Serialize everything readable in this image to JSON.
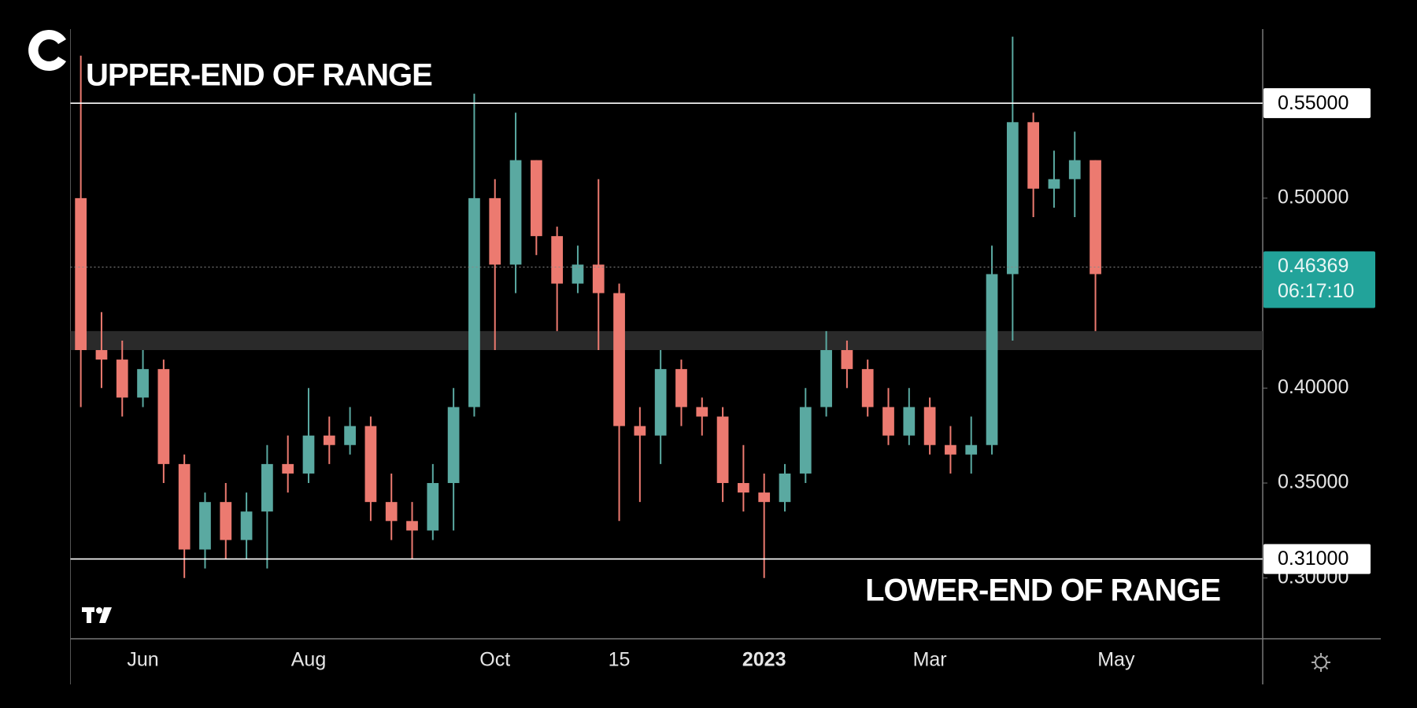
{
  "chart_data": {
    "type": "candlestick",
    "annotations": [
      "UPPER-END OF RANGE",
      "LOWER-END OF RANGE"
    ],
    "categories": [
      null,
      null,
      null,
      "Jun",
      null,
      null,
      null,
      null,
      null,
      null,
      null,
      "Aug",
      null,
      null,
      null,
      null,
      null,
      null,
      null,
      null,
      "Oct",
      null,
      null,
      null,
      null,
      null,
      "15",
      null,
      null,
      null,
      null,
      null,
      null,
      "2023",
      null,
      null,
      null,
      null,
      null,
      null,
      null,
      "Mar",
      null,
      null,
      null,
      null,
      null,
      null,
      null,
      null,
      "May"
    ],
    "open": [
      0.5,
      0.42,
      0.415,
      0.395,
      0.41,
      0.36,
      0.315,
      0.34,
      0.32,
      0.335,
      0.36,
      0.355,
      0.375,
      0.37,
      0.38,
      0.34,
      0.33,
      0.325,
      0.35,
      0.39,
      0.5,
      0.465,
      0.52,
      0.48,
      0.455,
      0.465,
      0.45,
      0.38,
      0.375,
      0.41,
      0.39,
      0.385,
      0.35,
      0.345,
      0.34,
      0.355,
      0.39,
      0.42,
      0.41,
      0.39,
      0.375,
      0.39,
      0.37,
      0.365,
      0.37,
      0.46,
      0.54,
      0.505,
      0.51,
      0.52,
      null
    ],
    "high": [
      0.575,
      0.44,
      0.425,
      0.42,
      0.415,
      0.365,
      0.345,
      0.35,
      0.345,
      0.37,
      0.375,
      0.4,
      0.385,
      0.39,
      0.385,
      0.355,
      0.34,
      0.36,
      0.4,
      0.555,
      0.51,
      0.545,
      0.52,
      0.485,
      0.475,
      0.51,
      0.455,
      0.39,
      0.42,
      0.415,
      0.395,
      0.39,
      0.37,
      0.355,
      0.36,
      0.4,
      0.43,
      0.425,
      0.415,
      0.4,
      0.4,
      0.395,
      0.38,
      0.385,
      0.475,
      0.585,
      0.545,
      0.525,
      0.535,
      0.52,
      null
    ],
    "low": [
      0.39,
      0.4,
      0.385,
      0.39,
      0.35,
      0.3,
      0.305,
      0.31,
      0.31,
      0.305,
      0.345,
      0.35,
      0.36,
      0.365,
      0.33,
      0.32,
      0.31,
      0.32,
      0.325,
      0.385,
      0.42,
      0.45,
      0.47,
      0.43,
      0.45,
      0.42,
      0.33,
      0.34,
      0.36,
      0.38,
      0.375,
      0.34,
      0.335,
      0.3,
      0.335,
      0.35,
      0.385,
      0.4,
      0.385,
      0.37,
      0.37,
      0.365,
      0.355,
      0.355,
      0.365,
      0.425,
      0.49,
      0.495,
      0.49,
      0.43,
      null
    ],
    "close": [
      0.42,
      0.415,
      0.395,
      0.41,
      0.36,
      0.315,
      0.34,
      0.32,
      0.335,
      0.36,
      0.355,
      0.375,
      0.37,
      0.38,
      0.34,
      0.33,
      0.325,
      0.35,
      0.39,
      0.5,
      0.465,
      0.52,
      0.48,
      0.455,
      0.465,
      0.45,
      0.38,
      0.375,
      0.41,
      0.39,
      0.385,
      0.35,
      0.345,
      0.34,
      0.355,
      0.39,
      0.42,
      0.41,
      0.39,
      0.375,
      0.39,
      0.37,
      0.365,
      0.37,
      0.46,
      0.54,
      0.505,
      0.51,
      0.52,
      0.46,
      null
    ],
    "up_color": "#5aa9a1",
    "down_color": "#ec7a70",
    "ylim": [
      0.268,
      0.589
    ],
    "yticks": [
      {
        "value": 0.3,
        "label": "0.30000"
      },
      {
        "value": 0.35,
        "label": "0.35000"
      },
      {
        "value": 0.4,
        "label": "0.40000"
      },
      {
        "value": 0.5,
        "label": "0.50000"
      }
    ],
    "levels": [
      {
        "value": 0.55,
        "label": "0.55000"
      },
      {
        "value": 0.31,
        "label": "0.31000"
      }
    ],
    "zone": {
      "low": 0.42,
      "high": 0.43
    },
    "current_price": 0.46369,
    "countdown": "06:17:10",
    "current_color": "#22a39a",
    "grid": false
  }
}
